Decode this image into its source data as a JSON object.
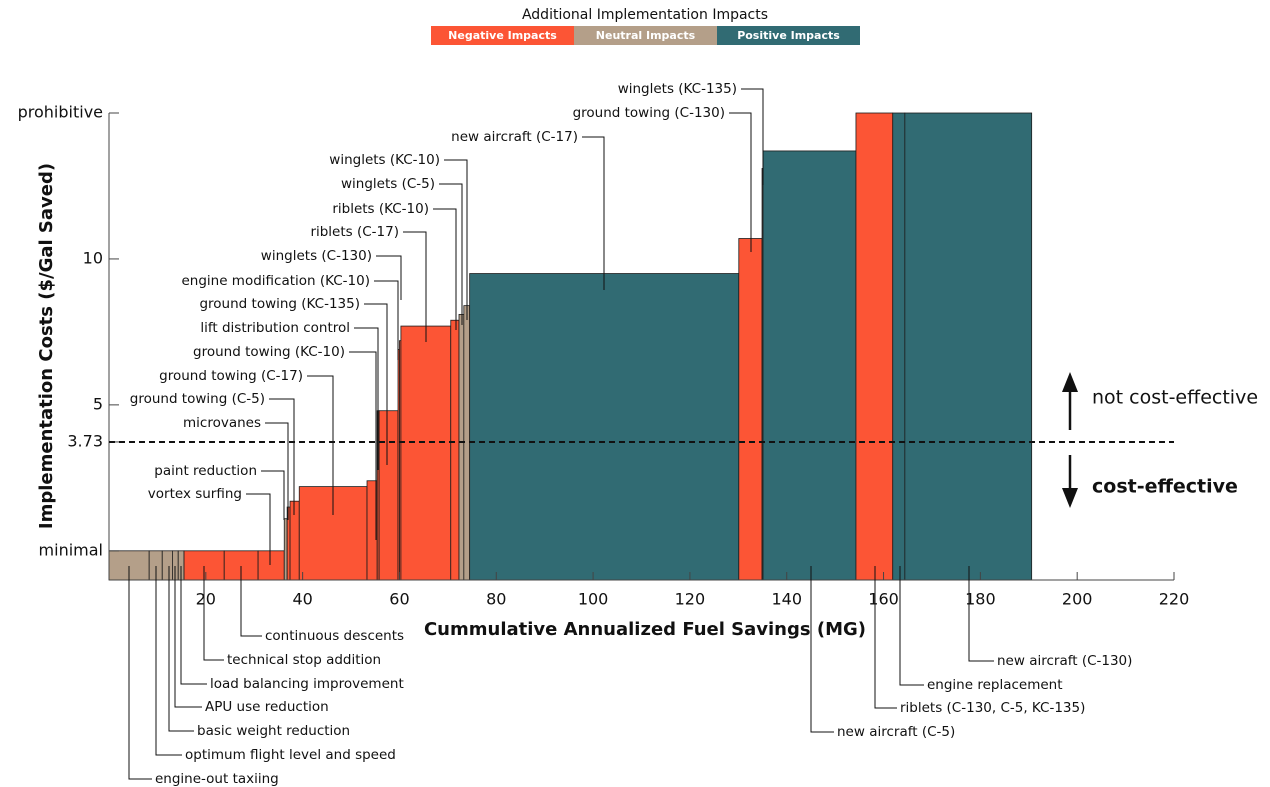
{
  "chart_data": {
    "type": "variable-width-bar",
    "legend_title": "Additional Implementation Impacts",
    "legend": [
      {
        "name": "Negative Impacts",
        "color": "#fc5535"
      },
      {
        "name": "Neutral Impacts",
        "color": "#b49f89"
      },
      {
        "name": "Positive Impacts",
        "color": "#316b73"
      }
    ],
    "xlabel": "Cummulative Annualized Fuel Savings (MG)",
    "ylabel": "Implementation Costs ($/Gal Saved)",
    "categories": [
      "engine-out taxiing",
      "optimum flight level and speed",
      "basic weight reduction",
      "APU use reduction",
      "load balancing improvement",
      "technical stop addition",
      "continuous descents",
      "vortex surfing",
      "paint reduction",
      "microvanes",
      "ground towing (C-5)",
      "ground towing (C-17)",
      "ground towing (KC-10)",
      "lift distribution control",
      "ground towing (KC-135)",
      "engine modification (KC-10)",
      "winglets (C-130)",
      "riblets (C-17)",
      "riblets (KC-10)",
      "winglets (C-5)",
      "winglets (KC-10)",
      "new aircraft (C-17)",
      "ground towing (C-130)",
      "winglets (KC-135)",
      "new aircraft (C-5)",
      "riblets (C-130, C-5, KC-135)",
      "engine replacement",
      "new aircraft (C-130)"
    ],
    "widths": [
      8.3,
      2.7,
      2.1,
      1.2,
      1.2,
      8.3,
      7.0,
      5.4,
      0.6,
      0.6,
      1.9,
      14.0,
      2.1,
      0.4,
      3.9,
      0.3,
      0.3,
      10.3,
      1.7,
      1.0,
      1.2,
      55.6,
      4.8,
      0.2,
      19.2,
      7.6,
      2.5,
      26.2
    ],
    "values": [
      0,
      0,
      0,
      0,
      0,
      0,
      0,
      0,
      1.1,
      1.5,
      1.7,
      2.2,
      2.4,
      4.8,
      4.8,
      6.9,
      7.2,
      7.7,
      7.9,
      8.1,
      8.4,
      9.5,
      10.7,
      13.1,
      13.7,
      15,
      15,
      15
    ],
    "colors": [
      "#b49f89",
      "#b49f89",
      "#b49f89",
      "#b49f89",
      "#b49f89",
      "#fc5535",
      "#fc5535",
      "#fc5535",
      "#b49f89",
      "#fc5535",
      "#fc5535",
      "#fc5535",
      "#fc5535",
      "#fc5535",
      "#fc5535",
      "#fc5535",
      "#fc5535",
      "#fc5535",
      "#fc5535",
      "#b49f89",
      "#b49f89",
      "#316b73",
      "#fc5535",
      "#b49f89",
      "#316b73",
      "#fc5535",
      "#316b73",
      "#316b73"
    ],
    "xlim": [
      0,
      220
    ],
    "xticks": [
      20,
      40,
      60,
      80,
      100,
      120,
      140,
      160,
      180,
      200,
      220
    ],
    "ylim": [
      -1,
      15
    ],
    "yticks": [
      {
        "value": 0,
        "label": "minimal"
      },
      3.73,
      5,
      10,
      {
        "value": 15,
        "label": "prohibitive"
      }
    ],
    "threshold": 3.73,
    "annotations": {
      "above": "not cost-effective",
      "below": "cost-effective"
    }
  }
}
